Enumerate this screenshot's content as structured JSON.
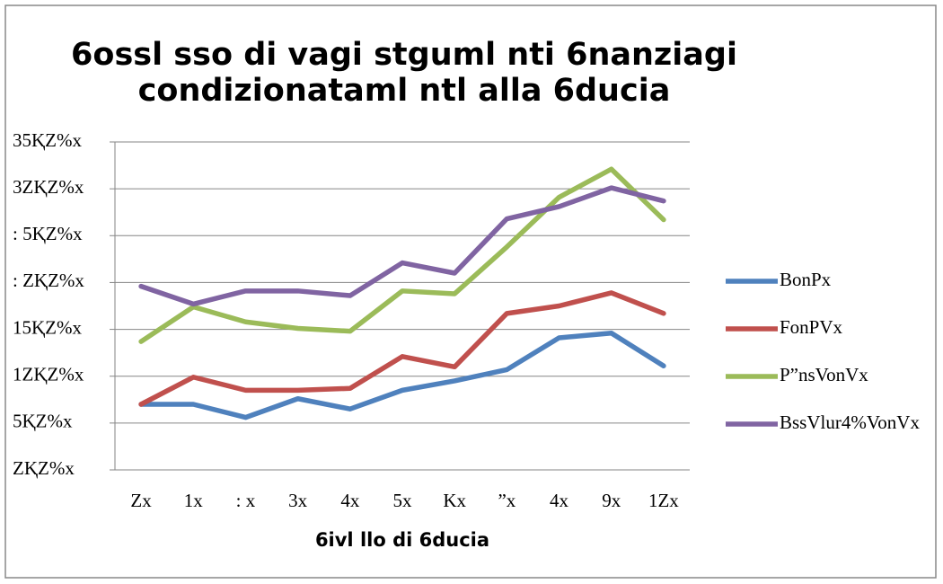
{
  "chart_data": {
    "type": "line",
    "title": [
      "6ossl sso di vagi stguml nti 6nanziagi",
      "condizionataml ntl  alla 6ducia"
    ],
    "x_label": "6ivl llo di 6ducia",
    "categories": [
      "Zx",
      "1x",
      ": x",
      "3x",
      "4x",
      "5x",
      "Kx",
      "”x",
      "4x",
      "9x",
      "1Zx"
    ],
    "series": [
      {
        "name": "BonPx",
        "color": "#4f81bd",
        "values": [
          7.0,
          7.0,
          5.6,
          7.6,
          6.5,
          8.5,
          9.5,
          10.7,
          14.1,
          14.6,
          11.1
        ]
      },
      {
        "name": "FonPVx",
        "color": "#c0504d",
        "values": [
          7.0,
          9.9,
          8.5,
          8.5,
          8.7,
          12.1,
          11.0,
          16.7,
          17.5,
          18.9,
          16.7
        ]
      },
      {
        "name": "P”nsVonVx",
        "color": "#9bbb59",
        "values": [
          13.7,
          17.4,
          15.8,
          15.1,
          14.8,
          19.1,
          18.8,
          23.8,
          29.1,
          32.1,
          26.7
        ]
      },
      {
        "name": "BssVlur4%VonVx",
        "color": "#8064a2",
        "values": [
          19.6,
          17.7,
          19.1,
          19.1,
          18.6,
          22.1,
          21.0,
          26.8,
          28.1,
          30.1,
          28.7
        ]
      }
    ],
    "ylim": [
      0,
      35
    ],
    "yticks": [
      {
        "value": 0,
        "label": "ZⱩZ%x"
      },
      {
        "value": 5,
        "label": "5ⱩZ%x"
      },
      {
        "value": 10,
        "label": "1ZⱩZ%x"
      },
      {
        "value": 15,
        "label": "15ⱩZ%x"
      },
      {
        "value": 20,
        "label": ": ZⱩZ%x"
      },
      {
        "value": 25,
        "label": ": 5ⱩZ%x"
      },
      {
        "value": 30,
        "label": "3ZⱩZ%x"
      },
      {
        "value": 35,
        "label": "35ⱩZ%x"
      }
    ],
    "grid": true,
    "legend": "right"
  }
}
